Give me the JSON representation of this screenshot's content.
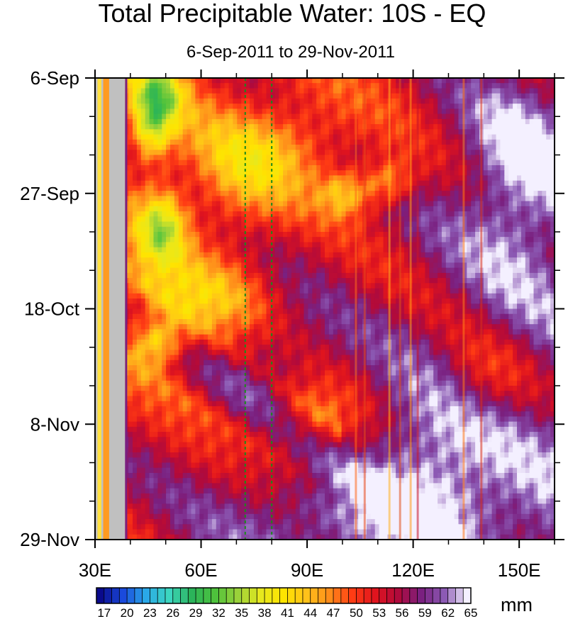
{
  "chart_data": {
    "type": "heatmap",
    "title": "Total Precipitable Water: 10S - EQ",
    "subtitle": "6-Sep-2011 to 29-Nov-2011",
    "xlabel": "",
    "ylabel": "",
    "x_range": [
      30,
      160
    ],
    "x_ticks": [
      {
        "value": 30,
        "label": "30E"
      },
      {
        "value": 60,
        "label": "60E"
      },
      {
        "value": 90,
        "label": "90E"
      },
      {
        "value": 120,
        "label": "120E"
      },
      {
        "value": 150,
        "label": "150E"
      }
    ],
    "y_range_days": [
      0,
      84
    ],
    "y_ticks": [
      {
        "day": 0,
        "label": "6-Sep"
      },
      {
        "day": 21,
        "label": "27-Sep"
      },
      {
        "day": 42,
        "label": "18-Oct"
      },
      {
        "day": 63,
        "label": "8-Nov"
      },
      {
        "day": 84,
        "label": "29-Nov"
      }
    ],
    "reference_lines_lon": [
      72.5,
      80
    ],
    "colorbar": {
      "units": "mm",
      "levels": [
        17,
        18,
        19,
        20,
        21,
        22,
        23,
        24,
        25,
        26,
        27,
        28,
        29,
        30,
        31,
        32,
        33,
        34,
        35,
        36,
        37,
        38,
        39,
        40,
        41,
        42,
        43,
        44,
        45,
        46,
        47,
        48,
        49,
        50,
        51,
        52,
        53,
        54,
        55,
        56,
        57,
        58,
        59,
        60,
        61,
        62,
        63,
        64,
        65
      ],
      "labels": [
        "17",
        "20",
        "23",
        "26",
        "29",
        "32",
        "35",
        "38",
        "41",
        "44",
        "47",
        "50",
        "53",
        "56",
        "59",
        "62",
        "65"
      ]
    },
    "missing_bands_lon": [
      [
        30,
        30.7
      ],
      [
        31.8,
        32.3
      ],
      [
        34,
        38.5
      ]
    ]
  }
}
